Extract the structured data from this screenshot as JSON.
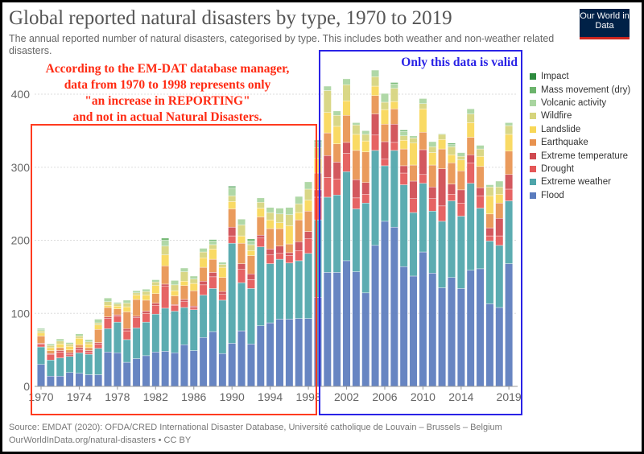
{
  "header": {
    "title": "Global reported natural disasters by type, 1970 to 2019",
    "subtitle": "The annual reported number of natural disasters, categorised by type. This includes both weather and non-weather related disasters.",
    "logo_text": "Our World in Data"
  },
  "annotations": {
    "red_note": [
      "According to the EM-DAT database manager,",
      "data from 1970 to 1998 represents only",
      "\"an increase in REPORTING\"",
      "and not in actual Natural Disasters."
    ],
    "blue_note": "Only this data is valid",
    "red_color": "#ff2a12",
    "blue_color": "#2a23e6"
  },
  "footer": {
    "source": "Source: EMDAT (2020): OFDA/CRED International Disaster Database, Université catholique de Louvain – Brussels – Belgium",
    "url": "OurWorldInData.org/natural-disasters • CC BY"
  },
  "chart_data": {
    "type": "bar",
    "stacked": true,
    "title": "Global reported natural disasters by type, 1970 to 2019",
    "xlabel": "",
    "ylabel": "",
    "ylim": [
      0,
      400
    ],
    "yticks": [
      0,
      100,
      200,
      300,
      400
    ],
    "xtick_labels": [
      "1970",
      "1974",
      "1978",
      "1982",
      "1986",
      "1990",
      "1994",
      "1998",
      "2002",
      "2006",
      "2010",
      "2014",
      "2019"
    ],
    "grid": true,
    "legend_placement": "right",
    "x": [
      1970,
      1971,
      1972,
      1973,
      1974,
      1975,
      1976,
      1977,
      1978,
      1979,
      1980,
      1981,
      1982,
      1983,
      1984,
      1985,
      1986,
      1987,
      1988,
      1989,
      1990,
      1991,
      1992,
      1993,
      1994,
      1995,
      1996,
      1997,
      1998,
      1999,
      2000,
      2001,
      2002,
      2003,
      2004,
      2005,
      2006,
      2007,
      2008,
      2009,
      2010,
      2011,
      2012,
      2013,
      2014,
      2015,
      2016,
      2017,
      2018,
      2019
    ],
    "series": [
      {
        "name": "Flood",
        "color": "#5a7bbd",
        "values": [
          30,
          14,
          14,
          19,
          18,
          16,
          16,
          47,
          46,
          33,
          38,
          42,
          47,
          48,
          46,
          57,
          49,
          67,
          75,
          45,
          59,
          76,
          58,
          83,
          87,
          92,
          92,
          93,
          93,
          122,
          156,
          156,
          172,
          157,
          128,
          193,
          226,
          218,
          164,
          151,
          184,
          155,
          135,
          149,
          134,
          159,
          161,
          113,
          108,
          168
        ]
      },
      {
        "name": "Extreme weather",
        "color": "#4ea5aa",
        "values": [
          24,
          22,
          25,
          22,
          28,
          28,
          36,
          32,
          42,
          31,
          42,
          46,
          52,
          59,
          57,
          51,
          56,
          58,
          59,
          73,
          137,
          66,
          76,
          108,
          81,
          82,
          77,
          79,
          89,
          106,
          103,
          106,
          122,
          86,
          123,
          130,
          76,
          105,
          112,
          87,
          94,
          85,
          91,
          105,
          99,
          119,
          83,
          86,
          85,
          86
        ]
      },
      {
        "name": "Drought",
        "color": "#e45757",
        "values": [
          4,
          8,
          8,
          3,
          4,
          3,
          6,
          14,
          8,
          12,
          14,
          12,
          12,
          30,
          8,
          8,
          3,
          14,
          16,
          8,
          10,
          18,
          12,
          12,
          12,
          8,
          10,
          14,
          20,
          31,
          27,
          22,
          25,
          15,
          12,
          21,
          9,
          11,
          16,
          19,
          12,
          17,
          21,
          9,
          18,
          28,
          17,
          7,
          13,
          16
        ]
      },
      {
        "name": "Extreme temperature",
        "color": "#cf4a50",
        "values": [
          1,
          1,
          2,
          2,
          3,
          2,
          2,
          2,
          2,
          3,
          2,
          3,
          3,
          3,
          1,
          3,
          2,
          5,
          6,
          4,
          12,
          8,
          8,
          4,
          8,
          10,
          4,
          12,
          10,
          10,
          30,
          23,
          15,
          25,
          16,
          29,
          24,
          25,
          10,
          24,
          34,
          16,
          51,
          14,
          18,
          11,
          11,
          11,
          24,
          20
        ]
      },
      {
        "name": "Earthquake",
        "color": "#e8924f",
        "values": [
          10,
          4,
          4,
          4,
          4,
          4,
          18,
          13,
          8,
          23,
          23,
          15,
          13,
          25,
          12,
          19,
          21,
          19,
          18,
          19,
          25,
          28,
          25,
          25,
          28,
          24,
          12,
          30,
          28,
          23,
          31,
          25,
          37,
          40,
          42,
          25,
          24,
          21,
          23,
          22,
          24,
          30,
          27,
          29,
          26,
          24,
          29,
          19,
          21,
          32
        ]
      },
      {
        "name": "Landslide",
        "color": "#f8d757",
        "values": [
          4,
          4,
          5,
          5,
          9,
          5,
          6,
          3,
          4,
          7,
          6,
          7,
          11,
          15,
          7,
          6,
          10,
          13,
          14,
          14,
          10,
          10,
          7,
          12,
          12,
          8,
          25,
          10,
          15,
          20,
          28,
          24,
          20,
          22,
          15,
          13,
          20,
          10,
          12,
          30,
          32,
          17,
          13,
          11,
          15,
          20,
          14,
          25,
          12,
          23
        ]
      },
      {
        "name": "Wildfire",
        "color": "#d6d47c",
        "values": [
          3,
          3,
          4,
          3,
          3,
          3,
          3,
          5,
          3,
          5,
          3,
          5,
          5,
          12,
          8,
          13,
          6,
          8,
          6,
          4,
          8,
          15,
          8,
          8,
          10,
          12,
          15,
          12,
          15,
          15,
          30,
          15,
          22,
          13,
          9,
          13,
          10,
          18,
          6,
          7,
          7,
          8,
          7,
          11,
          5,
          12,
          10,
          12,
          10,
          12
        ]
      },
      {
        "name": "Volcanic activity",
        "color": "#a9d5a0",
        "values": [
          2,
          2,
          3,
          2,
          3,
          3,
          5,
          5,
          2,
          4,
          3,
          3,
          3,
          8,
          6,
          5,
          4,
          5,
          5,
          3,
          10,
          8,
          5,
          6,
          7,
          8,
          10,
          10,
          10,
          8,
          6,
          6,
          8,
          3,
          5,
          9,
          12,
          6,
          6,
          3,
          7,
          7,
          1,
          3,
          5,
          7,
          5,
          3,
          8,
          4
        ]
      },
      {
        "name": "Mass movement (dry)",
        "color": "#6cb46c",
        "values": [
          1,
          0,
          0,
          0,
          0,
          0,
          0,
          0,
          0,
          0,
          0,
          0,
          0,
          3,
          0,
          0,
          0,
          0,
          2,
          0,
          2,
          0,
          3,
          0,
          0,
          0,
          0,
          0,
          0,
          2,
          0,
          0,
          0,
          0,
          0,
          0,
          0,
          2,
          2,
          0,
          0,
          0,
          0,
          2,
          0,
          0,
          0,
          0,
          0,
          0
        ]
      },
      {
        "name": "Impact",
        "color": "#2e8b3e",
        "values": [
          0,
          0,
          0,
          0,
          0,
          0,
          0,
          0,
          0,
          0,
          0,
          0,
          0,
          0,
          0,
          0,
          0,
          0,
          0,
          0,
          1,
          0,
          0,
          0,
          0,
          0,
          0,
          0,
          0,
          0,
          0,
          0,
          0,
          0,
          0,
          0,
          0,
          0,
          0,
          0,
          0,
          0,
          0,
          0,
          0,
          0,
          0,
          0,
          0,
          0
        ]
      }
    ]
  }
}
